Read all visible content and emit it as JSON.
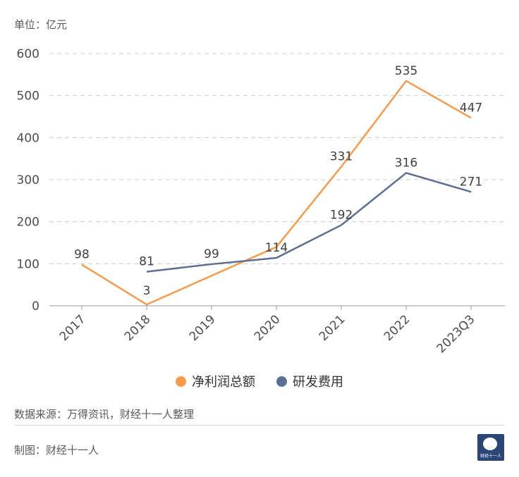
{
  "unit_label": "单位：亿元",
  "legend": [
    {
      "label": "净利润总额",
      "color": "#f79a4b"
    },
    {
      "label": "研发费用",
      "color": "#5a6f95"
    }
  ],
  "source": "数据来源：万得资讯，财经十一人整理",
  "maker": "制图：财经十一人",
  "logo_text": "财经十一人",
  "chart_data": {
    "type": "line",
    "categories": [
      "2017",
      "2018",
      "2019",
      "2020",
      "2021",
      "2022",
      "2023Q3"
    ],
    "yticks": [
      "0",
      "100",
      "200",
      "300",
      "400",
      "500",
      "600"
    ],
    "ylim": [
      0,
      600
    ],
    "grid": true,
    "series": [
      {
        "name": "净利润总额",
        "color": "#f79a4b",
        "values": [
          98,
          3,
          null,
          140,
          331,
          535,
          447
        ],
        "labels": [
          "98",
          "3",
          null,
          null,
          "331",
          "535",
          "447"
        ]
      },
      {
        "name": "研发费用",
        "color": "#5a6f95",
        "values": [
          null,
          81,
          99,
          114,
          192,
          316,
          271
        ],
        "labels": [
          null,
          "81",
          "99",
          "114",
          "192",
          "316",
          "271"
        ]
      }
    ]
  }
}
